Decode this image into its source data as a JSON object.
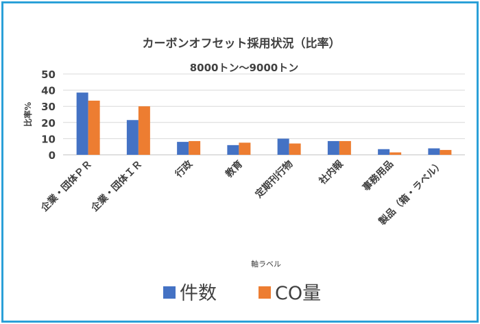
{
  "chart_data": {
    "type": "bar",
    "title": "カーボンオフセット採用状況（比率）",
    "subtitle": "8000トン〜9000トン",
    "xlabel": "軸ラベル",
    "ylabel": "比率%",
    "ylim": [
      0,
      50
    ],
    "yticks": [
      "0",
      "10",
      "20",
      "30",
      "40",
      "50"
    ],
    "grid": true,
    "legend_position": "bottom",
    "categories": [
      "企業・団体ＰＲ",
      "企業・団体ＩＲ",
      "行政",
      "教育",
      "定期刊行物",
      "社内報",
      "事務用品",
      "製品（箱・ラベル）"
    ],
    "series": [
      {
        "name": "件数",
        "color": "#4472c4",
        "values": [
          38.5,
          21.5,
          8,
          6,
          10,
          8.5,
          3.5,
          4
        ]
      },
      {
        "name": "CO量",
        "color": "#ed7d31",
        "values": [
          33.5,
          30,
          8.5,
          7.5,
          7,
          8.5,
          1.5,
          3
        ]
      }
    ]
  }
}
